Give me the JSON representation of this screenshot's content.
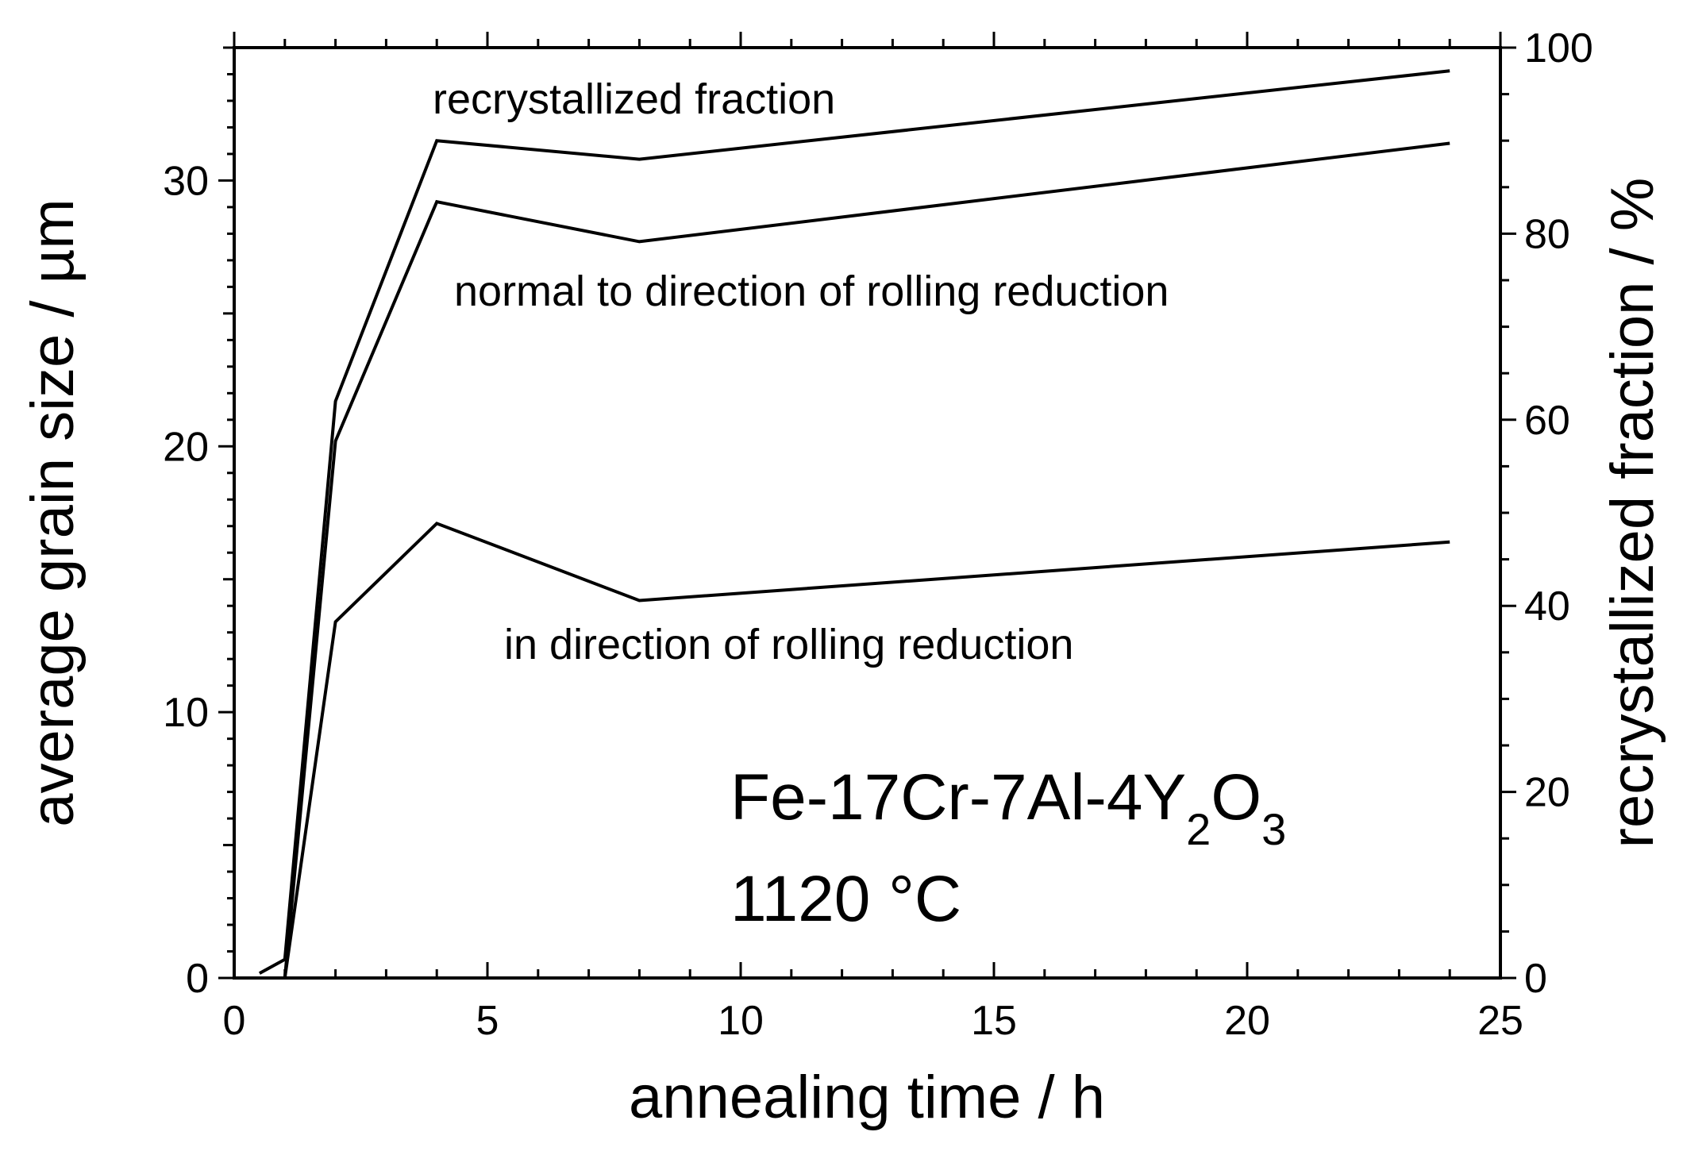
{
  "chart_data": {
    "type": "line",
    "xlabel": "annealing time / h",
    "ylabel": "average grain size / µm",
    "ylabel_right": "recrystallized fraction / %",
    "xlim": [
      0,
      25
    ],
    "ylim": [
      0,
      35
    ],
    "ylim_right": [
      0,
      100
    ],
    "x_ticks": [
      "0",
      "5",
      "10",
      "15",
      "20",
      "25"
    ],
    "y_ticks": [
      "0",
      "10",
      "20",
      "30"
    ],
    "y_ticks_right": [
      "0",
      "20",
      "40",
      "60",
      "80",
      "100"
    ],
    "grid": false,
    "series": [
      {
        "name": "recrystallized fraction",
        "axis": "right",
        "x": [
          0.5,
          1,
          2,
          4,
          8,
          24
        ],
        "values": [
          0.5,
          2,
          62,
          90,
          88,
          97.5
        ]
      },
      {
        "name": "normal to direction of rolling reduction",
        "axis": "left",
        "x": [
          1,
          2,
          4,
          8,
          24
        ],
        "values": [
          0,
          20.2,
          29.2,
          27.7,
          31.4
        ]
      },
      {
        "name": "in direction of rolling reduction",
        "axis": "left",
        "x": [
          1,
          2,
          4,
          8,
          24
        ],
        "values": [
          0,
          13.4,
          17.1,
          14.2,
          16.4
        ]
      }
    ],
    "annotations": {
      "material_main": "Fe-17Cr-7Al-4Y",
      "material_sub1": "2",
      "material_mid": "O",
      "material_sub2": "3",
      "temperature": "1120 °C"
    }
  }
}
